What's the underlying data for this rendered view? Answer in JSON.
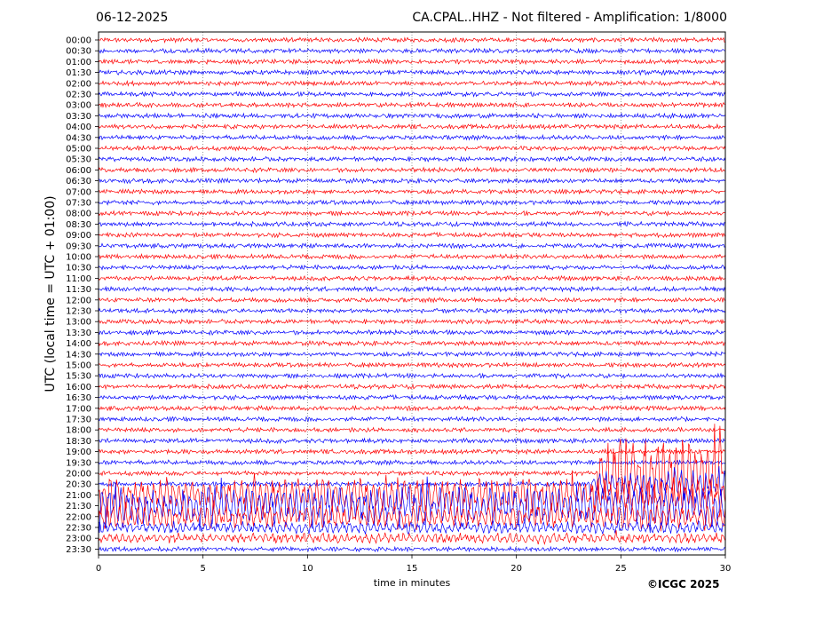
{
  "header": {
    "date": "06-12-2025",
    "title": "CA.CPAL..HHZ - Not filtered - Amplification: 1/8000"
  },
  "footer": {
    "copyright": "©ICGC 2025"
  },
  "chart_data": {
    "type": "line",
    "xlabel": "time in minutes",
    "ylabel": "UTC (local time = UTC + 01:00)",
    "xlim": [
      0,
      30
    ],
    "x_ticks": [
      "0",
      "5",
      "10",
      "15",
      "20",
      "25",
      "30"
    ],
    "grid": "vertical dotted at each 5 minutes",
    "row_labels": [
      "00:00",
      "00:30",
      "01:00",
      "01:30",
      "02:00",
      "02:30",
      "03:00",
      "03:30",
      "04:00",
      "04:30",
      "05:00",
      "05:30",
      "06:00",
      "06:30",
      "07:00",
      "07:30",
      "08:00",
      "08:30",
      "09:00",
      "09:30",
      "10:00",
      "10:30",
      "11:00",
      "11:30",
      "12:00",
      "12:30",
      "13:00",
      "13:30",
      "14:00",
      "14:30",
      "15:00",
      "15:30",
      "16:00",
      "16:30",
      "17:00",
      "17:30",
      "18:00",
      "18:30",
      "19:00",
      "19:30",
      "20:00",
      "20:30",
      "21:00",
      "21:30",
      "22:00",
      "22:30",
      "23:00",
      "23:30"
    ],
    "trace_colors": [
      "#ff0000",
      "#0000ff"
    ],
    "quiet_amplitude": 0.15,
    "events": [
      {
        "row_label": "20:00",
        "x_start": 23.9,
        "x_end": 29.8,
        "peak_amplitude": 3.5
      },
      {
        "row_label": "20:30",
        "x_start": 23.5,
        "x_end": 30,
        "peak_amplitude": 1.3
      },
      {
        "row_label": "21:00",
        "x_start": 0,
        "x_end": 30,
        "peak_amplitude": 1.6
      },
      {
        "row_label": "21:30",
        "x_start": 0,
        "x_end": 30,
        "peak_amplitude": 1.8
      },
      {
        "row_label": "22:00",
        "x_start": 0,
        "x_end": 30,
        "peak_amplitude": 1.1
      },
      {
        "row_label": "22:30",
        "x_start": 0,
        "x_end": 30,
        "peak_amplitude": 0.5
      },
      {
        "row_label": "23:00",
        "x_start": 0,
        "x_end": 30,
        "peak_amplitude": 0.4
      }
    ]
  }
}
